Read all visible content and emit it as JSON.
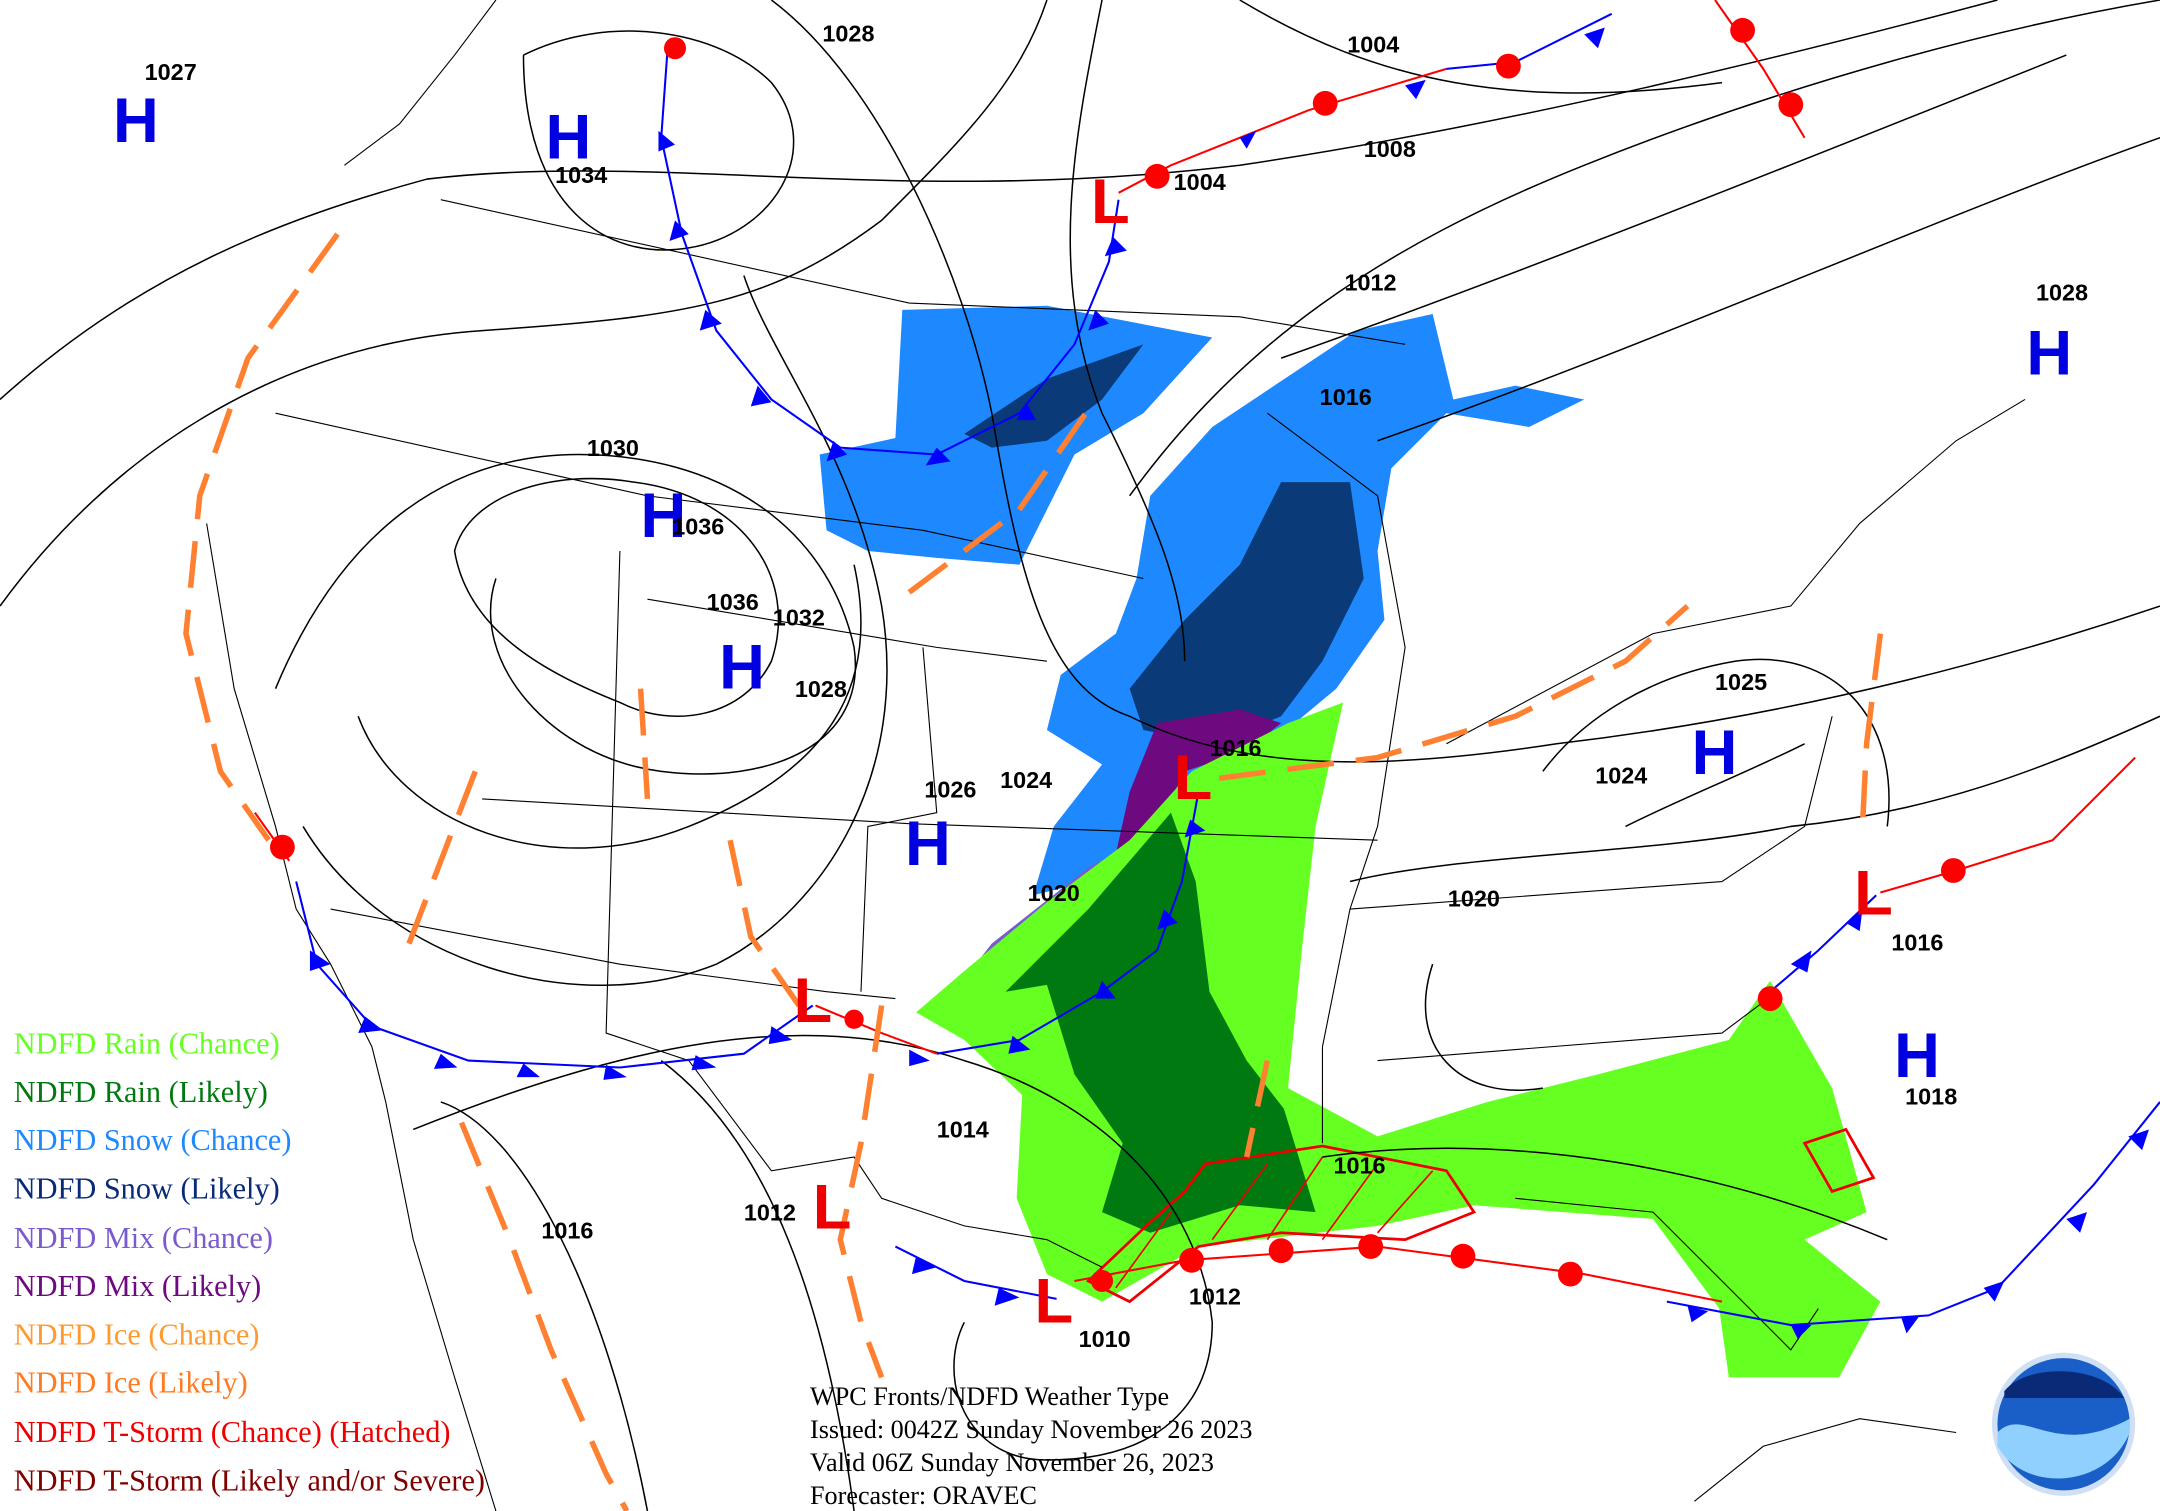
{
  "title": "WPC Fronts/NDFD Weather Type",
  "issued": "Issued: 0042Z Sunday November 26 2023",
  "valid": "Valid 06Z Sunday November 26, 2023",
  "forecaster": "Forecaster: ORAVEC",
  "logo_text": "NOAA",
  "legend": [
    {
      "label": "NDFD Rain (Chance)",
      "color": "#66ff22"
    },
    {
      "label": "NDFD Rain (Likely)",
      "color": "#007a10"
    },
    {
      "label": "NDFD Snow (Chance)",
      "color": "#1e88ff"
    },
    {
      "label": "NDFD Snow (Likely)",
      "color": "#0a2a78"
    },
    {
      "label": "NDFD Mix (Chance)",
      "color": "#7a5ad0"
    },
    {
      "label": "NDFD Mix (Likely)",
      "color": "#6e0a80"
    },
    {
      "label": "NDFD Ice (Chance)",
      "color": "#ff9a30"
    },
    {
      "label": "NDFD Ice (Likely)",
      "color": "#ff7a20"
    },
    {
      "label": "NDFD T-Storm (Chance) (Hatched)",
      "color": "#ee0000"
    },
    {
      "label": "NDFD T-Storm (Likely and/or Severe)",
      "color": "#800000"
    }
  ],
  "pressure_centers": [
    {
      "type": "H",
      "value": "1027"
    },
    {
      "type": "H",
      "value": "1034"
    },
    {
      "type": "H",
      "value": "1036"
    },
    {
      "type": "H",
      "value": ""
    },
    {
      "type": "H",
      "value": ""
    },
    {
      "type": "H",
      "value": "1028"
    },
    {
      "type": "H",
      "value": "1025"
    },
    {
      "type": "H",
      "value": "1018"
    },
    {
      "type": "L",
      "value": "1004"
    },
    {
      "type": "L",
      "value": "1016"
    },
    {
      "type": "L",
      "value": "1016"
    },
    {
      "type": "L",
      "value": ""
    },
    {
      "type": "L",
      "value": "1012"
    },
    {
      "type": "L",
      "value": "1010"
    }
  ],
  "isobar_labels": [
    "1028",
    "1004",
    "1008",
    "1012",
    "1016",
    "1030",
    "1036",
    "1032",
    "1028",
    "1026",
    "1024",
    "1020",
    "1024",
    "1020",
    "1014",
    "1016",
    "1012",
    "1016"
  ]
}
